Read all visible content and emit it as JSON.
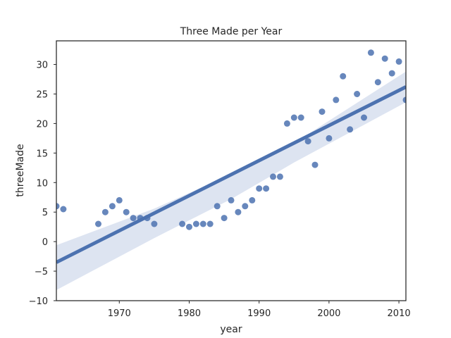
{
  "chart_data": {
    "type": "scatter",
    "title": "Three Made per Year",
    "xlabel": "year",
    "ylabel": "threeMade",
    "xlim": [
      1961,
      2011
    ],
    "ylim": [
      -10,
      34
    ],
    "xticks": [
      1970,
      1980,
      1990,
      2000,
      2010
    ],
    "yticks": [
      -10,
      -5,
      0,
      5,
      10,
      15,
      20,
      25,
      30
    ],
    "ytick_labels": [
      "−10",
      "−5",
      "0",
      "5",
      "10",
      "15",
      "20",
      "25",
      "30"
    ],
    "grid": false,
    "points": {
      "x": [
        1961,
        1962,
        1967,
        1968,
        1969,
        1970,
        1971,
        1972,
        1973,
        1974,
        1975,
        1979,
        1980,
        1981,
        1982,
        1983,
        1984,
        1985,
        1986,
        1987,
        1988,
        1989,
        1990,
        1991,
        1992,
        1993,
        1994,
        1995,
        1996,
        1997,
        1998,
        1999,
        2000,
        2001,
        2002,
        2003,
        2004,
        2005,
        2006,
        2007,
        2008,
        2009,
        2010,
        2011
      ],
      "y": [
        6,
        5.5,
        3,
        5,
        6,
        7,
        5,
        4,
        4,
        4,
        3,
        3,
        2.5,
        3,
        3,
        3,
        6,
        4,
        7,
        5,
        6,
        7,
        9,
        9,
        11,
        11,
        20,
        21,
        21,
        17,
        13,
        22,
        17.5,
        24,
        28,
        19,
        25,
        21,
        32,
        27,
        31,
        28.5,
        30.5,
        24
      ]
    },
    "regression": {
      "x": [
        1961,
        2011
      ],
      "y": [
        -3.5,
        26.2
      ]
    },
    "confidence_band": {
      "x": [
        1961,
        1975,
        1986,
        1995,
        2011
      ],
      "lower": [
        -8.2,
        0.6,
        7.2,
        13.4,
        23.6
      ],
      "upper": [
        -0.6,
        5.6,
        11.4,
        16.7,
        28.8
      ]
    },
    "colors": {
      "points": "#4c72b0",
      "line": "#4c72b0",
      "band": "#dde4f1",
      "axes": "#262626"
    }
  }
}
